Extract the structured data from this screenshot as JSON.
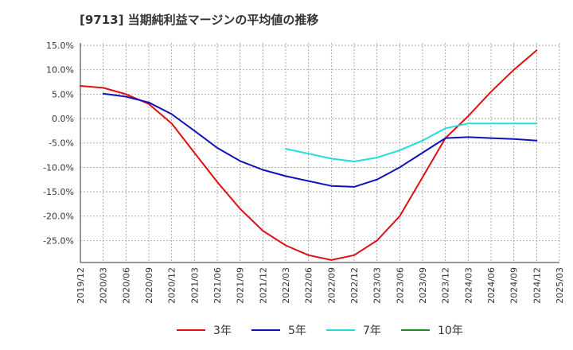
{
  "chart_data": {
    "type": "line",
    "title": "[9713]  当期純利益マージンの平均値の推移",
    "xlabel": "",
    "ylabel": "",
    "x_ticks": [
      "2019/12",
      "2020/03",
      "2020/06",
      "2020/09",
      "2020/12",
      "2021/03",
      "2021/06",
      "2021/09",
      "2021/12",
      "2022/03",
      "2022/06",
      "2022/09",
      "2022/12",
      "2023/03",
      "2023/06",
      "2023/09",
      "2023/12",
      "2024/03",
      "2024/06",
      "2024/09",
      "2024/12",
      "2025/03"
    ],
    "y_ticks": [
      "15.0%",
      "10.0%",
      "5.0%",
      "0.0%",
      "-5.0%",
      "-10.0%",
      "-15.0%",
      "-20.0%",
      "-25.0%"
    ],
    "ylim": [
      -29.5,
      15.5
    ],
    "grid": true,
    "legend_position": "bottom",
    "series": [
      {
        "name": "3年",
        "color": "#dd1111",
        "x": [
          "2019/12",
          "2020/03",
          "2020/06",
          "2020/09",
          "2020/12",
          "2021/03",
          "2021/06",
          "2021/09",
          "2021/12",
          "2022/03",
          "2022/06",
          "2022/09",
          "2022/12",
          "2023/03",
          "2023/06",
          "2023/09",
          "2023/12",
          "2024/03",
          "2024/06",
          "2024/09",
          "2024/12"
        ],
        "values": [
          6.7,
          6.3,
          5.0,
          3.0,
          -1.0,
          -7.0,
          -13.0,
          -18.5,
          -23.0,
          -26.0,
          -28.0,
          -29.0,
          -28.0,
          -25.0,
          -20.0,
          -12.0,
          -4.0,
          0.5,
          5.5,
          10.0,
          14.0
        ]
      },
      {
        "name": "5年",
        "color": "#1111bb",
        "x": [
          "2020/03",
          "2020/06",
          "2020/09",
          "2020/12",
          "2021/03",
          "2021/06",
          "2021/09",
          "2021/12",
          "2022/03",
          "2022/06",
          "2022/09",
          "2022/12",
          "2023/03",
          "2023/06",
          "2023/09",
          "2023/12",
          "2024/03",
          "2024/06",
          "2024/09",
          "2024/12"
        ],
        "values": [
          5.1,
          4.5,
          3.3,
          0.9,
          -2.5,
          -6.0,
          -8.7,
          -10.5,
          -11.8,
          -12.8,
          -13.8,
          -14.0,
          -12.5,
          -10.0,
          -7.0,
          -4.0,
          -3.8,
          -4.0,
          -4.2,
          -4.5
        ]
      },
      {
        "name": "7年",
        "color": "#22dddd",
        "x": [
          "2022/03",
          "2022/06",
          "2022/09",
          "2022/12",
          "2023/03",
          "2023/06",
          "2023/09",
          "2023/12",
          "2024/03",
          "2024/06",
          "2024/09",
          "2024/12"
        ],
        "values": [
          -6.2,
          -7.2,
          -8.2,
          -8.8,
          -8.0,
          -6.5,
          -4.5,
          -2.0,
          -1.0,
          -1.0,
          -1.0,
          -1.0
        ]
      },
      {
        "name": "10年",
        "color": "#228822",
        "x": [],
        "values": []
      }
    ]
  }
}
